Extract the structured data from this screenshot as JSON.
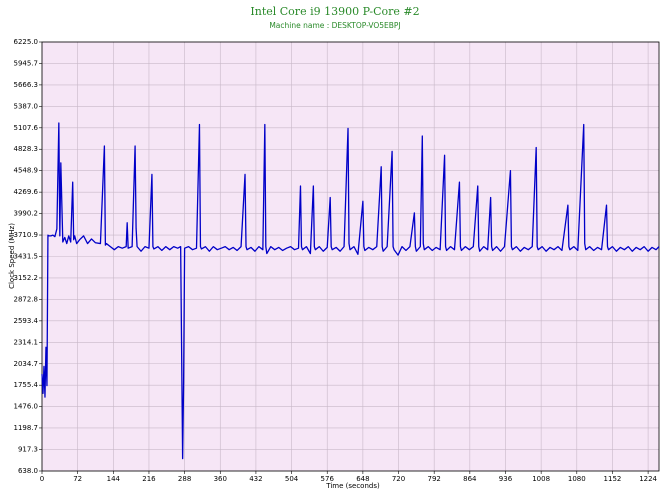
{
  "chart_data": {
    "type": "line",
    "title": "Intel Core i9 13900 P-Core #2",
    "subtitle": "Machine name : DESKTOP-VO5EBPJ",
    "x_label": "Time (seconds)",
    "y_label": "Clock Speed (MHz)",
    "color": "#0000c8",
    "grid": true,
    "xlim": [
      0,
      1246
    ],
    "ylim": [
      638,
      6225
    ],
    "xticks": [
      0,
      72,
      144,
      216,
      288,
      360,
      432,
      504,
      576,
      648,
      720,
      792,
      864,
      936,
      1008,
      1080,
      1152,
      1224
    ],
    "yticks": [
      {
        "value": 638,
        "label": "638.0"
      },
      {
        "value": 917.3,
        "label": "917.3"
      },
      {
        "value": 1198.7,
        "label": "1198.7"
      },
      {
        "value": 1476,
        "label": "1476.0"
      },
      {
        "value": 1755.4,
        "label": "1755.4"
      },
      {
        "value": 2034.7,
        "label": "2034.7"
      },
      {
        "value": 2314.1,
        "label": "2314.1"
      },
      {
        "value": 2593.4,
        "label": "2593.4"
      },
      {
        "value": 2872.8,
        "label": "2872.8"
      },
      {
        "value": 3152.2,
        "label": "3152.2"
      },
      3431.5,
      {
        "value": 3710.9,
        "label": "3710.9"
      },
      3990.2,
      {
        "value": 4269.6,
        "label": "4269.6"
      },
      4548.9,
      {
        "value": 4828.3,
        "label": "4828.3"
      },
      5107.6,
      {
        "value": 5387,
        "label": "5387.0"
      },
      5666.3,
      5945.7,
      {
        "value": 6225,
        "label": "6225.0"
      }
    ],
    "x": [
      0,
      2,
      4,
      6,
      8,
      10,
      12,
      14,
      18,
      22,
      26,
      30,
      34,
      36,
      38,
      42,
      46,
      50,
      54,
      58,
      62,
      64,
      66,
      70,
      76,
      84,
      92,
      100,
      108,
      118,
      126,
      128,
      130,
      138,
      146,
      154,
      162,
      170,
      172,
      174,
      182,
      188,
      190,
      192,
      200,
      208,
      216,
      222,
      224,
      226,
      234,
      242,
      250,
      258,
      266,
      274,
      280,
      284,
      286,
      288,
      296,
      304,
      312,
      318,
      320,
      322,
      330,
      338,
      346,
      354,
      362,
      370,
      378,
      386,
      394,
      402,
      410,
      412,
      414,
      422,
      430,
      438,
      446,
      450,
      452,
      454,
      462,
      470,
      478,
      486,
      494,
      502,
      510,
      518,
      522,
      524,
      526,
      534,
      542,
      548,
      550,
      552,
      560,
      568,
      576,
      582,
      584,
      586,
      594,
      602,
      610,
      618,
      620,
      622,
      630,
      638,
      648,
      650,
      652,
      660,
      668,
      676,
      685,
      687,
      689,
      697,
      707,
      709,
      711,
      719,
      727,
      735,
      743,
      752,
      754,
      756,
      764,
      768,
      770,
      772,
      780,
      788,
      796,
      804,
      813,
      815,
      817,
      825,
      833,
      843,
      845,
      847,
      855,
      863,
      871,
      880,
      882,
      884,
      892,
      900,
      906,
      908,
      910,
      918,
      926,
      934,
      946,
      948,
      950,
      958,
      966,
      974,
      982,
      990,
      998,
      1000,
      1002,
      1010,
      1018,
      1026,
      1034,
      1042,
      1050,
      1062,
      1064,
      1066,
      1074,
      1082,
      1094,
      1096,
      1098,
      1106,
      1114,
      1122,
      1130,
      1140,
      1142,
      1144,
      1152,
      1160,
      1168,
      1176,
      1184,
      1192,
      1200,
      1208,
      1216,
      1224,
      1232,
      1240,
      1246
    ],
    "values": [
      1900,
      1650,
      2000,
      1600,
      2250,
      1750,
      3710,
      3700,
      3700,
      3710,
      3690,
      3790,
      5170,
      3700,
      4650,
      3620,
      3680,
      3600,
      3700,
      3620,
      4400,
      3650,
      3700,
      3600,
      3650,
      3700,
      3600,
      3660,
      3610,
      3600,
      4870,
      3580,
      3600,
      3560,
      3520,
      3560,
      3540,
      3560,
      3870,
      3540,
      3560,
      4870,
      3800,
      3560,
      3500,
      3560,
      3540,
      4500,
      3560,
      3530,
      3560,
      3510,
      3560,
      3520,
      3560,
      3540,
      3560,
      800,
      1800,
      3540,
      3560,
      3520,
      3540,
      5150,
      3560,
      3530,
      3560,
      3500,
      3560,
      3520,
      3540,
      3560,
      3520,
      3550,
      3510,
      3560,
      4500,
      3560,
      3520,
      3550,
      3500,
      3560,
      3520,
      5150,
      3560,
      3470,
      3560,
      3520,
      3550,
      3510,
      3540,
      3560,
      3520,
      3540,
      4350,
      3560,
      3520,
      3560,
      3470,
      4350,
      3560,
      3520,
      3560,
      3500,
      3550,
      4200,
      3560,
      3520,
      3550,
      3500,
      3560,
      5100,
      3600,
      3520,
      3560,
      3460,
      4150,
      3560,
      3510,
      3550,
      3520,
      3560,
      4600,
      3560,
      3500,
      3560,
      4800,
      3560,
      3520,
      3450,
      3560,
      3510,
      3560,
      4000,
      3560,
      3500,
      3560,
      5000,
      3600,
      3520,
      3560,
      3510,
      3550,
      3520,
      4750,
      3560,
      3510,
      3560,
      3520,
      4400,
      3560,
      3510,
      3560,
      3520,
      3560,
      4350,
      3560,
      3500,
      3560,
      3520,
      4200,
      3560,
      3510,
      3560,
      3500,
      3560,
      4550,
      3560,
      3520,
      3560,
      3500,
      3550,
      3520,
      3560,
      4850,
      3560,
      3520,
      3560,
      3500,
      3550,
      3520,
      3560,
      3510,
      4100,
      3560,
      3520,
      3560,
      3510,
      5150,
      3600,
      3520,
      3560,
      3510,
      3550,
      3520,
      4100,
      3560,
      3520,
      3560,
      3500,
      3550,
      3520,
      3560,
      3500,
      3550,
      3520,
      3560,
      3500,
      3550,
      3520,
      3560
    ]
  }
}
